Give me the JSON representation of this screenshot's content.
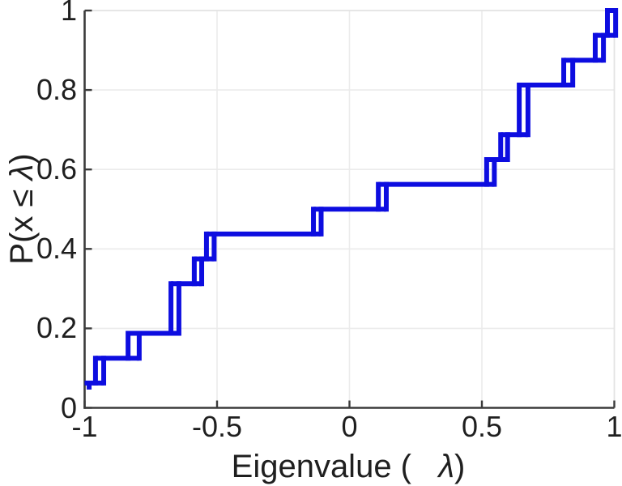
{
  "chart_data": {
    "type": "line",
    "subtype": "empirical-cdf-step",
    "title": "",
    "xlabel": "Eigenvalue (  λ)",
    "ylabel": "P(x ≤ λ)",
    "xlabel_parts": {
      "prefix": "Eigenvalue (",
      "gap": "   ",
      "lambda": "λ",
      "suffix": ")"
    },
    "ylabel_parts": {
      "prefix": "P(x ≤ ",
      "lambda": "λ",
      "suffix": ")"
    },
    "xlim": [
      -1,
      1
    ],
    "ylim": [
      0,
      1
    ],
    "x_tick_values": [
      -1,
      -0.5,
      0,
      0.5,
      1
    ],
    "x_tick_labels": [
      "-1",
      "-0.5",
      "0",
      "0.5",
      "1"
    ],
    "y_tick_values": [
      0,
      0.2,
      0.4,
      0.6,
      0.8,
      1
    ],
    "y_tick_labels": [
      "0",
      "0.2",
      "0.4",
      "0.6",
      "0.8",
      "1"
    ],
    "grid": true,
    "legend": null,
    "n_samples": 16,
    "eigenvalues_approx": [
      -1.0,
      -0.94,
      -0.81,
      -0.66,
      -0.66,
      -0.57,
      -0.52,
      -0.12,
      0.12,
      0.53,
      0.58,
      0.66,
      0.66,
      0.83,
      0.94,
      0.99
    ],
    "cdf_values": [
      0.0625,
      0.125,
      0.1875,
      0.3125,
      0.3125,
      0.375,
      0.4375,
      0.5,
      0.5625,
      0.625,
      0.6875,
      0.8125,
      0.8125,
      0.875,
      0.9375,
      1.0
    ],
    "start_flat_y": 0.0625,
    "start_stub": {
      "x": -0.983,
      "y_top": 0.0625,
      "y_bottom": 0.046
    },
    "end_x": 1.008,
    "jumps": [
      {
        "x_left": -0.959,
        "x_right": -0.928,
        "y_from": 0.0625,
        "y_to": 0.125
      },
      {
        "x_left": -0.836,
        "x_right": -0.794,
        "y_from": 0.125,
        "y_to": 0.1875
      },
      {
        "x_left": -0.674,
        "x_right": -0.644,
        "y_from": 0.1875,
        "y_to": 0.3125
      },
      {
        "x_left": -0.586,
        "x_right": -0.558,
        "y_from": 0.3125,
        "y_to": 0.375
      },
      {
        "x_left": -0.54,
        "x_right": -0.511,
        "y_from": 0.375,
        "y_to": 0.4375
      },
      {
        "x_left": -0.136,
        "x_right": -0.107,
        "y_from": 0.4375,
        "y_to": 0.5
      },
      {
        "x_left": 0.109,
        "x_right": 0.139,
        "y_from": 0.5,
        "y_to": 0.5625
      },
      {
        "x_left": 0.518,
        "x_right": 0.547,
        "y_from": 0.5625,
        "y_to": 0.625
      },
      {
        "x_left": 0.571,
        "x_right": 0.597,
        "y_from": 0.625,
        "y_to": 0.6875
      },
      {
        "x_left": 0.641,
        "x_right": 0.674,
        "y_from": 0.6875,
        "y_to": 0.8125
      },
      {
        "x_left": 0.809,
        "x_right": 0.843,
        "y_from": 0.8125,
        "y_to": 0.875
      },
      {
        "x_left": 0.928,
        "x_right": 0.959,
        "y_from": 0.875,
        "y_to": 0.9375
      },
      {
        "x_left": 0.974,
        "x_right": 1.005,
        "y_from": 0.9375,
        "y_to": 1.0
      }
    ],
    "colors": {
      "line": "#0d0de0",
      "grid": "#ebebeb",
      "spine_dark": "#3b3b3b",
      "spine_light": "#e3e3e3",
      "text": "#1f1f1f"
    }
  }
}
